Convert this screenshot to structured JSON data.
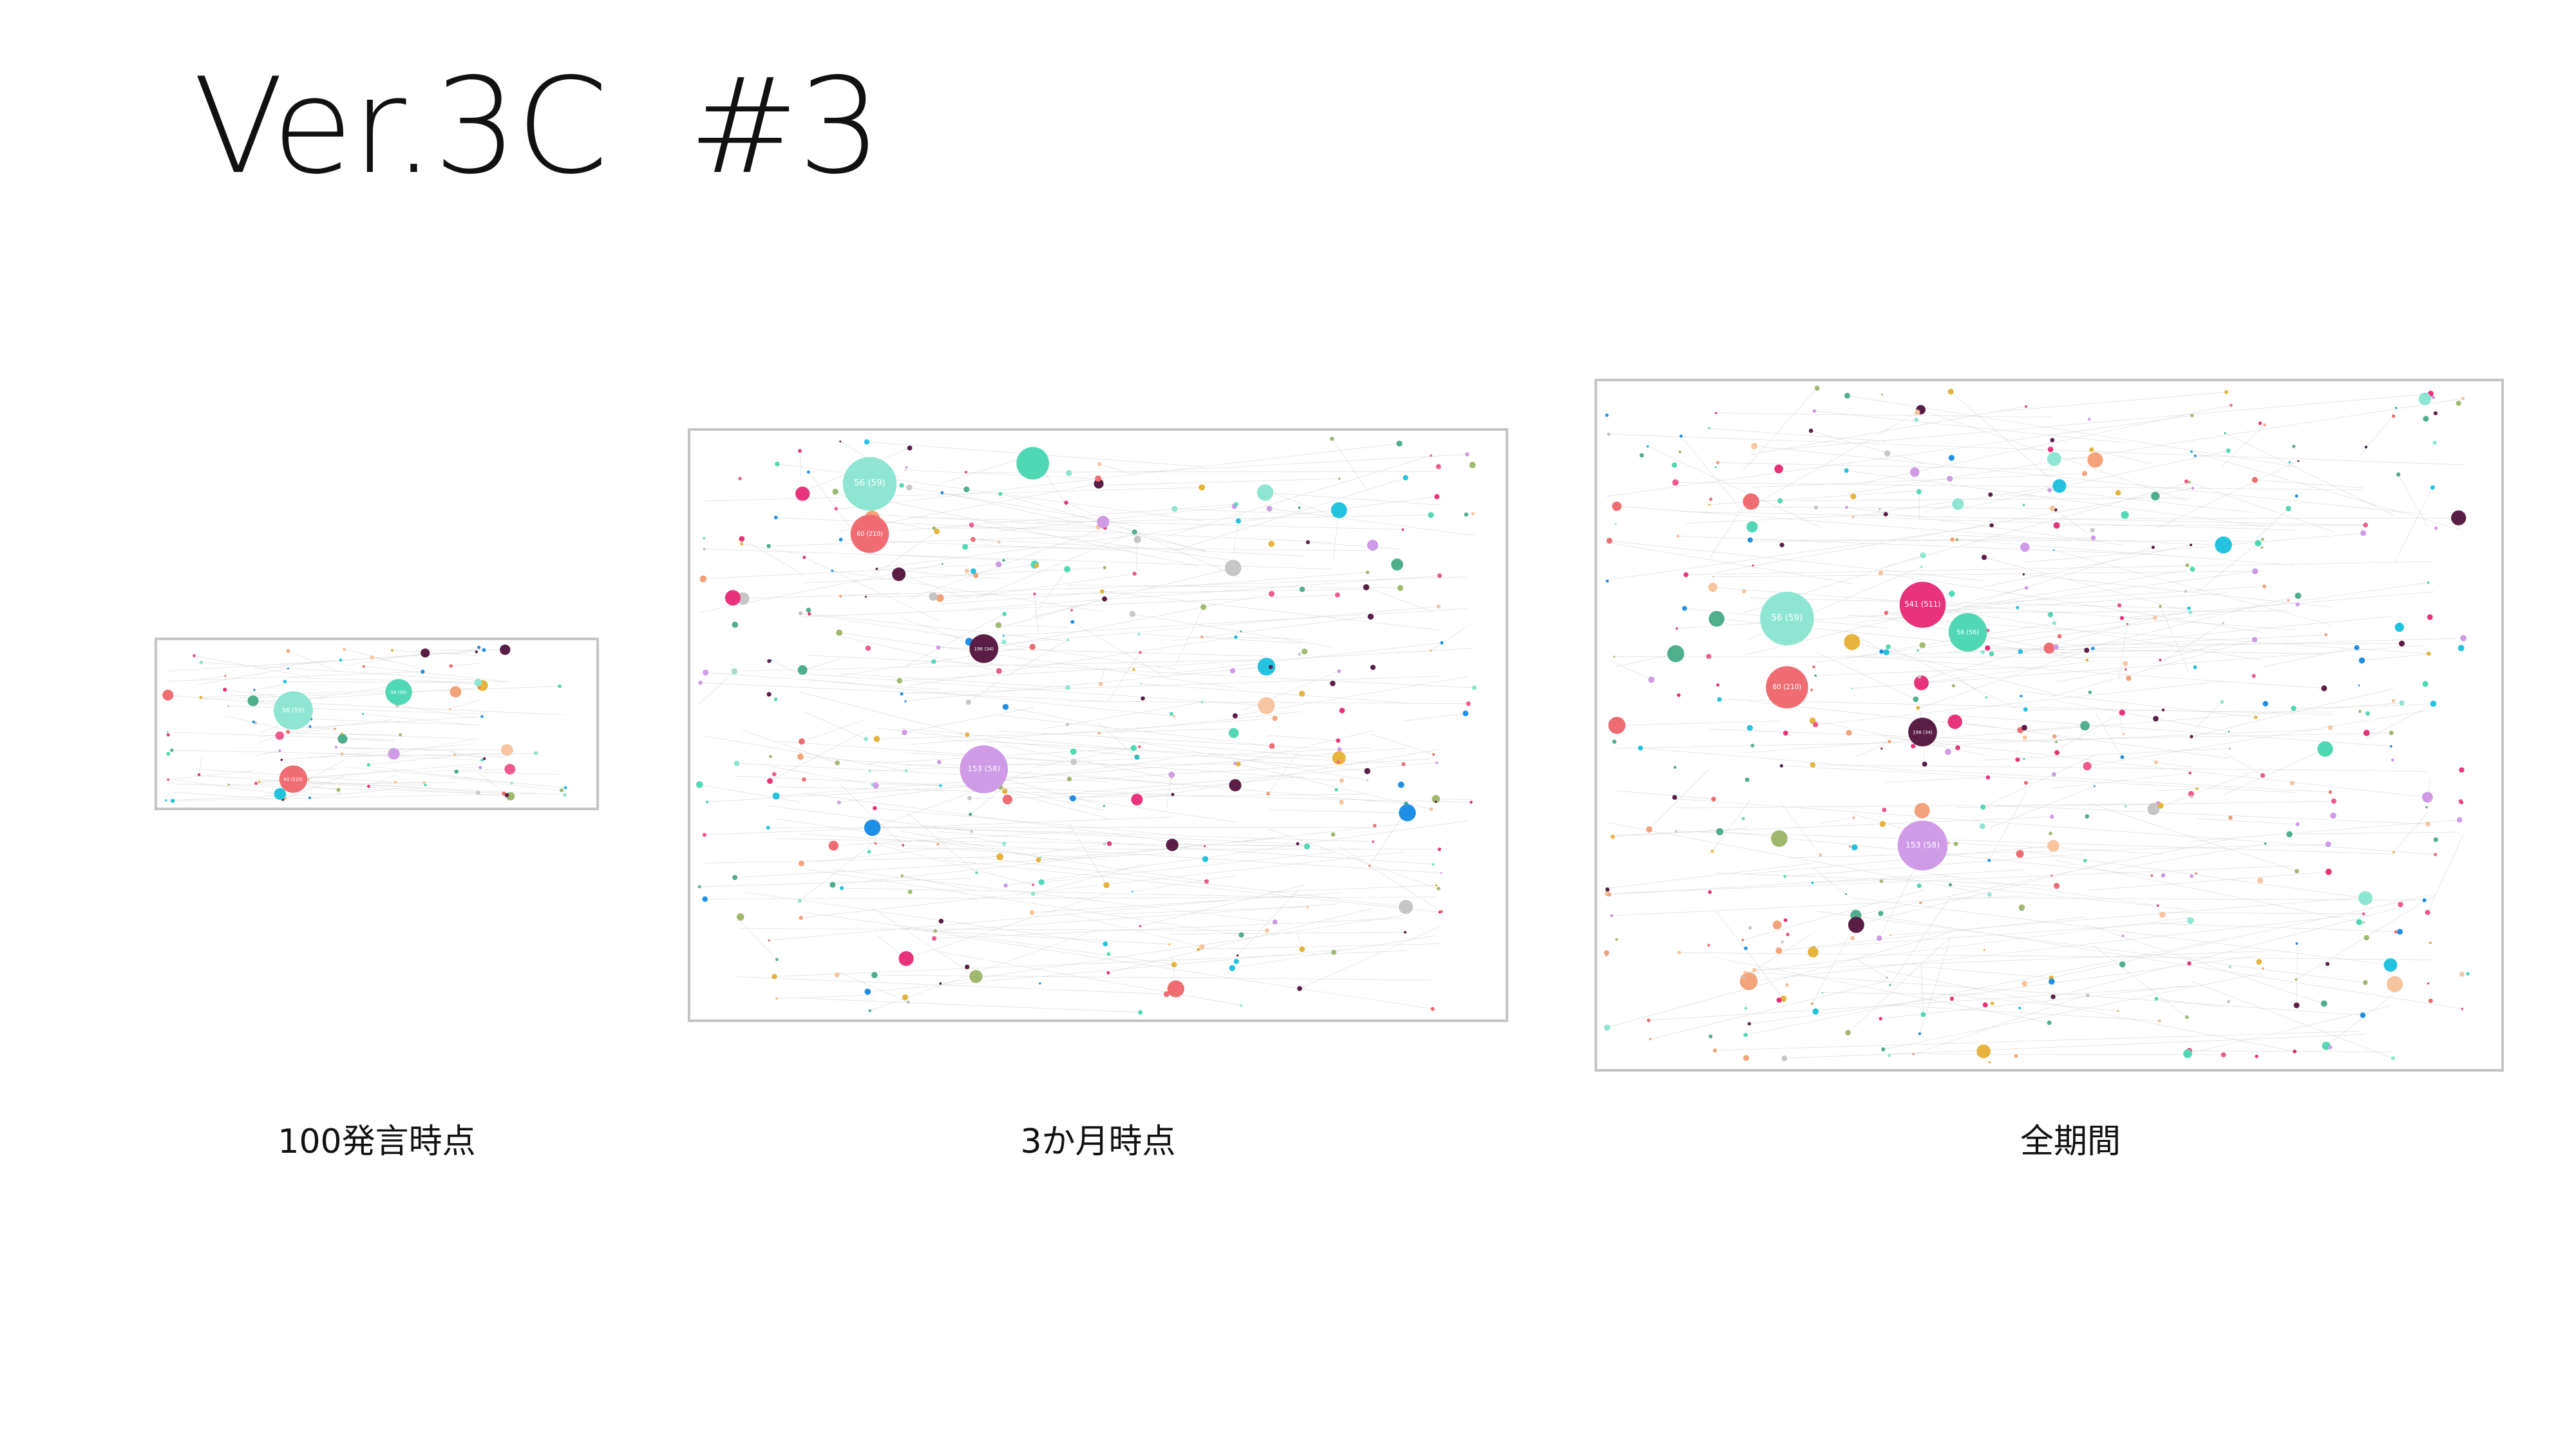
{
  "slide": {
    "title": "Ver.3C  #3"
  },
  "palette": [
    "#f06c73",
    "#e8327a",
    "#cf9ae6",
    "#f4a27a",
    "#8ee6d2",
    "#50d8b4",
    "#23c3df",
    "#1e8fe6",
    "#5a1e46",
    "#e6b43c",
    "#c6c6c6",
    "#a0b96e",
    "#4fae8c",
    "#ee5a8c",
    "#f7c59f"
  ],
  "graphs": [
    {
      "caption": "100発言時点",
      "seed": 11,
      "dot_count": 90,
      "featured": [
        {
          "color": "#8ee6d2",
          "label": "56 (59)",
          "value": 56
        },
        {
          "color": "#50d8b4",
          "label": "56 (56)",
          "value": 38
        },
        {
          "color": "#f06c73",
          "label": "60 (210)",
          "value": 40
        }
      ]
    },
    {
      "caption": "3か月時点",
      "seed": 29,
      "dot_count": 340,
      "featured": [
        {
          "color": "#8ee6d2",
          "label": "56 (59)",
          "value": 56
        },
        {
          "color": "#50d8b4",
          "label": "",
          "value": 34
        },
        {
          "color": "#f06c73",
          "label": "60 (210)",
          "value": 40
        },
        {
          "color": "#5a1e46",
          "label": "198 (34)",
          "value": 30
        },
        {
          "color": "#cf9ae6",
          "label": "153 (58)",
          "value": 50
        }
      ]
    },
    {
      "caption": "全期間",
      "seed": 47,
      "dot_count": 460,
      "featured": [
        {
          "color": "#8ee6d2",
          "label": "56 (59)",
          "value": 56
        },
        {
          "color": "#e8327a",
          "label": "541 (511)",
          "value": 48
        },
        {
          "color": "#50d8b4",
          "label": "56 (56)",
          "value": 40
        },
        {
          "color": "#f06c73",
          "label": "60 (210)",
          "value": 44
        },
        {
          "color": "#5a1e46",
          "label": "198 (34)",
          "value": 30
        },
        {
          "color": "#cf9ae6",
          "label": "153 (58)",
          "value": 52
        }
      ]
    }
  ]
}
